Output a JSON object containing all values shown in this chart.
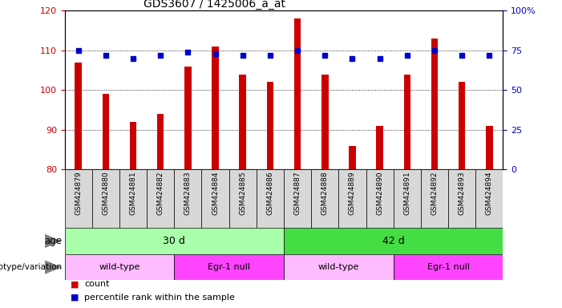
{
  "title": "GDS3607 / 1425006_a_at",
  "samples": [
    "GSM424879",
    "GSM424880",
    "GSM424881",
    "GSM424882",
    "GSM424883",
    "GSM424884",
    "GSM424885",
    "GSM424886",
    "GSM424887",
    "GSM424888",
    "GSM424889",
    "GSM424890",
    "GSM424891",
    "GSM424892",
    "GSM424893",
    "GSM424894"
  ],
  "counts": [
    107,
    99,
    92,
    94,
    106,
    111,
    104,
    102,
    118,
    104,
    86,
    91,
    104,
    113,
    102,
    91
  ],
  "percentiles": [
    75,
    72,
    70,
    72,
    74,
    73,
    72,
    72,
    75,
    72,
    70,
    70,
    72,
    75,
    72,
    72
  ],
  "ylim_left": [
    80,
    120
  ],
  "ylim_right": [
    0,
    100
  ],
  "yticks_left": [
    80,
    90,
    100,
    110,
    120
  ],
  "yticks_right": [
    0,
    25,
    50,
    75,
    100
  ],
  "bar_color": "#cc0000",
  "dot_color": "#0000cc",
  "bar_bottom": 80,
  "age_groups": [
    {
      "label": "30 d",
      "start": 0,
      "end": 8,
      "color": "#aaffaa"
    },
    {
      "label": "42 d",
      "start": 8,
      "end": 16,
      "color": "#44dd44"
    }
  ],
  "genotype_groups": [
    {
      "label": "wild-type",
      "start": 0,
      "end": 4,
      "color": "#ffbbff"
    },
    {
      "label": "Egr-1 null",
      "start": 4,
      "end": 8,
      "color": "#ff44ff"
    },
    {
      "label": "wild-type",
      "start": 8,
      "end": 12,
      "color": "#ffbbff"
    },
    {
      "label": "Egr-1 null",
      "start": 12,
      "end": 16,
      "color": "#ff44ff"
    }
  ],
  "legend_count_color": "#cc0000",
  "legend_pct_color": "#0000cc",
  "xlabel_age": "age",
  "xlabel_geno": "genotype/variation",
  "bg_color": "#d8d8d8",
  "grid_yticks": [
    90,
    100,
    110
  ]
}
